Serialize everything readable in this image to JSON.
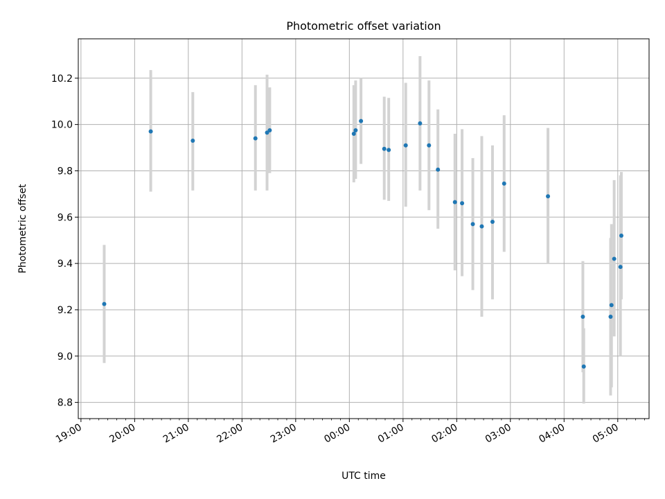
{
  "chart_data": {
    "type": "scatter",
    "title": "Photometric offset variation",
    "xlabel": "UTC time",
    "ylabel": "Photometric offset",
    "x_tick_labels": [
      "19:00",
      "20:00",
      "21:00",
      "22:00",
      "23:00",
      "00:00",
      "01:00",
      "02:00",
      "03:00",
      "04:00",
      "05:00"
    ],
    "x_ticks": [
      "19:00",
      "20:00",
      "21:00",
      "22:00",
      "23:00",
      "00:00",
      "01:00",
      "02:00",
      "03:00",
      "04:00",
      "05:00"
    ],
    "y_ticks": [
      8.8,
      9.0,
      9.2,
      9.4,
      9.6,
      9.8,
      10.0,
      10.2
    ],
    "y_tick_labels": [
      "8.8",
      "9.0",
      "9.2",
      "9.4",
      "9.6",
      "9.8",
      "10.0",
      "10.2"
    ],
    "xlim": [
      "18:57",
      "05:35"
    ],
    "ylim": [
      8.73,
      10.37
    ],
    "grid": true,
    "tick_label_rotation": 30,
    "colors": {
      "points": "#1f77b4",
      "errorbars": "#d3d3d3",
      "grid": "#b0b0b0",
      "axes": "#000000"
    },
    "points": [
      {
        "x": "19:26",
        "y": 9.225,
        "ylow": 8.97,
        "yhigh": 9.48
      },
      {
        "x": "20:18",
        "y": 9.97,
        "ylow": 9.71,
        "yhigh": 10.235
      },
      {
        "x": "21:05",
        "y": 9.93,
        "ylow": 9.715,
        "yhigh": 10.14
      },
      {
        "x": "22:15",
        "y": 9.94,
        "ylow": 9.715,
        "yhigh": 10.17
      },
      {
        "x": "22:28",
        "y": 9.965,
        "ylow": 9.715,
        "yhigh": 10.215
      },
      {
        "x": "22:31",
        "y": 9.975,
        "ylow": 9.79,
        "yhigh": 10.16
      },
      {
        "x": "00:05",
        "y": 9.96,
        "ylow": 9.75,
        "yhigh": 10.17
      },
      {
        "x": "00:07",
        "y": 9.975,
        "ylow": 9.765,
        "yhigh": 10.19
      },
      {
        "x": "00:13",
        "y": 10.015,
        "ylow": 9.83,
        "yhigh": 10.2
      },
      {
        "x": "00:39",
        "y": 9.895,
        "ylow": 9.675,
        "yhigh": 10.12
      },
      {
        "x": "00:44",
        "y": 9.89,
        "ylow": 9.67,
        "yhigh": 10.115
      },
      {
        "x": "01:03",
        "y": 9.91,
        "ylow": 9.645,
        "yhigh": 10.18
      },
      {
        "x": "01:19",
        "y": 10.005,
        "ylow": 9.715,
        "yhigh": 10.295
      },
      {
        "x": "01:29",
        "y": 9.91,
        "ylow": 9.63,
        "yhigh": 10.19
      },
      {
        "x": "01:39",
        "y": 9.805,
        "ylow": 9.55,
        "yhigh": 10.065
      },
      {
        "x": "01:58",
        "y": 9.665,
        "ylow": 9.37,
        "yhigh": 9.96
      },
      {
        "x": "02:06",
        "y": 9.66,
        "ylow": 9.345,
        "yhigh": 9.98
      },
      {
        "x": "02:18",
        "y": 9.57,
        "ylow": 9.285,
        "yhigh": 9.855
      },
      {
        "x": "02:28",
        "y": 9.56,
        "ylow": 9.17,
        "yhigh": 9.95
      },
      {
        "x": "02:40",
        "y": 9.58,
        "ylow": 9.245,
        "yhigh": 9.91
      },
      {
        "x": "02:53",
        "y": 9.745,
        "ylow": 9.45,
        "yhigh": 10.04
      },
      {
        "x": "03:42",
        "y": 9.69,
        "ylow": 9.4,
        "yhigh": 9.985
      },
      {
        "x": "04:21",
        "y": 9.17,
        "ylow": 8.93,
        "yhigh": 9.41
      },
      {
        "x": "04:22",
        "y": 8.955,
        "ylow": 8.795,
        "yhigh": 9.12
      },
      {
        "x": "04:52",
        "y": 9.17,
        "ylow": 8.83,
        "yhigh": 9.51
      },
      {
        "x": "04:53",
        "y": 9.22,
        "ylow": 8.865,
        "yhigh": 9.57
      },
      {
        "x": "04:56",
        "y": 9.42,
        "ylow": 9.085,
        "yhigh": 9.76
      },
      {
        "x": "05:03",
        "y": 9.385,
        "ylow": 9.0,
        "yhigh": 9.78
      },
      {
        "x": "05:04",
        "y": 9.52,
        "ylow": 9.245,
        "yhigh": 9.795
      }
    ]
  }
}
